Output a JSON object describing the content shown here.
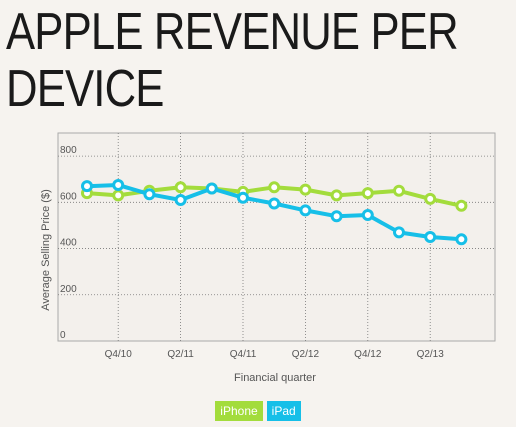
{
  "title_line1": "APPLE REVENUE PER",
  "title_line2": "DEVICE",
  "chart_data": {
    "type": "line",
    "title": "APPLE REVENUE PER DEVICE",
    "xlabel": "Financial quarter",
    "ylabel": "Average Selling Price ($)",
    "x": [
      "Q3/10",
      "Q4/10",
      "Q1/11",
      "Q2/11",
      "Q3/11",
      "Q4/11",
      "Q1/12",
      "Q2/12",
      "Q3/12",
      "Q4/12",
      "Q1/13",
      "Q2/13",
      "Q3/13"
    ],
    "x_tick_labels": [
      "Q4/10",
      "Q2/11",
      "Q4/11",
      "Q2/12",
      "Q4/12",
      "Q2/13"
    ],
    "y_ticks": [
      0,
      200,
      400,
      600,
      800
    ],
    "ylim": [
      0,
      900
    ],
    "grid": true,
    "series": [
      {
        "name": "iPhone",
        "color": "#a3dc3c",
        "values": [
          640,
          630,
          650,
          665,
          660,
          645,
          665,
          655,
          630,
          640,
          650,
          615,
          585
        ]
      },
      {
        "name": "iPad",
        "color": "#16bfe8",
        "values": [
          670,
          675,
          635,
          610,
          660,
          620,
          595,
          565,
          540,
          545,
          470,
          450,
          440
        ]
      }
    ]
  },
  "legend": {
    "position": "bottom-center"
  }
}
